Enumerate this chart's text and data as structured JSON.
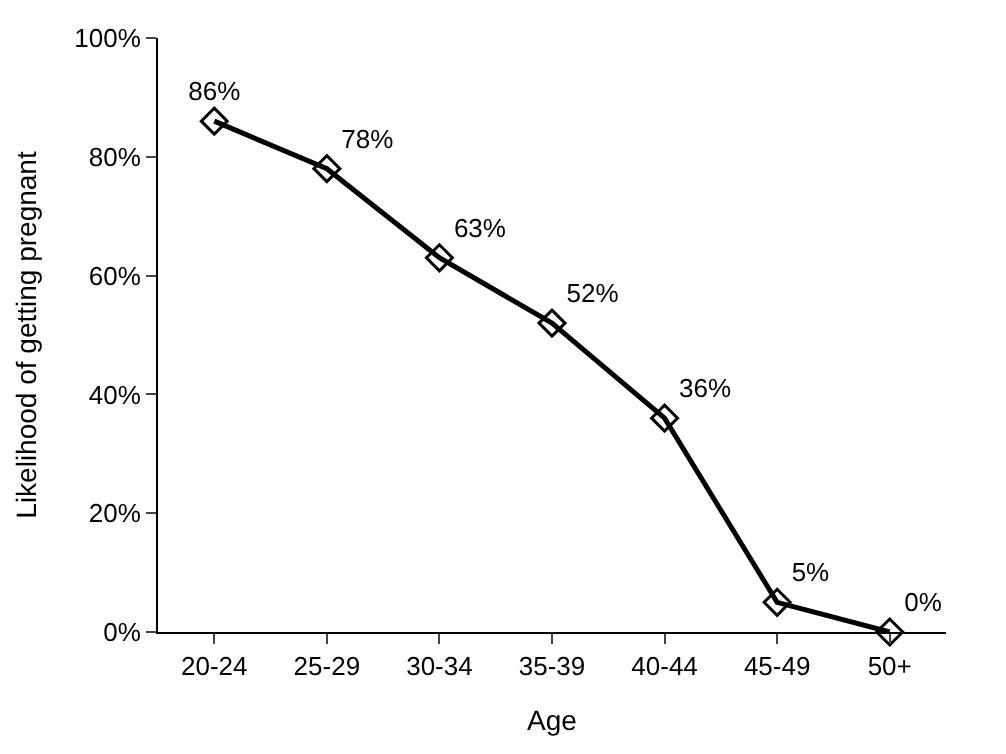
{
  "chart_data": {
    "type": "line",
    "xlabel": "Age",
    "ylabel": "Likelihood of getting pregnant",
    "categories": [
      "20-24",
      "25-29",
      "30-34",
      "35-39",
      "40-44",
      "45-49",
      "50+"
    ],
    "series": [
      {
        "color": "#000000",
        "values": [
          86,
          78,
          63,
          52,
          36,
          5,
          0
        ],
        "value_labels": [
          "86%",
          "78%",
          "63%",
          "52%",
          "36%",
          "5%",
          "0%"
        ]
      }
    ],
    "ylim": [
      0,
      100
    ],
    "yticks": [
      {
        "value": 0,
        "label": "0%"
      },
      {
        "value": 20,
        "label": "20%"
      },
      {
        "value": 40,
        "label": "40%"
      },
      {
        "value": 60,
        "label": "60%"
      },
      {
        "value": 80,
        "label": "80%"
      },
      {
        "value": 100,
        "label": "100%"
      }
    ],
    "marker": "diamond",
    "line_style": "solid"
  }
}
